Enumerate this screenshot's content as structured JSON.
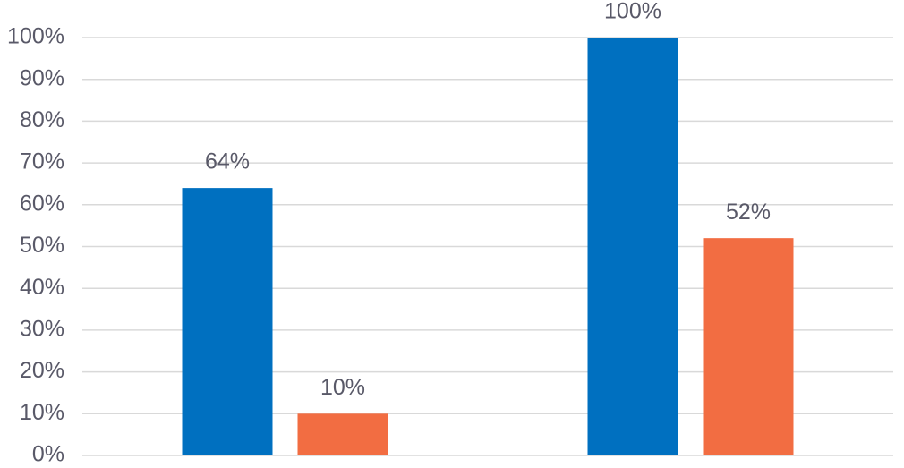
{
  "chart_data": {
    "type": "bar",
    "categories": [
      null,
      null
    ],
    "series": [
      {
        "color": "#0070c0",
        "values": [
          64,
          100
        ],
        "value_labels": [
          "64%",
          "100%"
        ]
      },
      {
        "color": "#f26d42",
        "values": [
          10,
          52
        ],
        "value_labels": [
          "10%",
          "52%"
        ]
      }
    ],
    "ylim": [
      0,
      100
    ],
    "yticks": [
      {
        "value": 0,
        "label": "0%"
      },
      {
        "value": 10,
        "label": "10%"
      },
      {
        "value": 20,
        "label": "20%"
      },
      {
        "value": 30,
        "label": "30%"
      },
      {
        "value": 40,
        "label": "40%"
      },
      {
        "value": 50,
        "label": "50%"
      },
      {
        "value": 60,
        "label": "60%"
      },
      {
        "value": 70,
        "label": "70%"
      },
      {
        "value": 80,
        "label": "80%"
      },
      {
        "value": 90,
        "label": "90%"
      },
      {
        "value": 100,
        "label": "100%"
      }
    ],
    "grid": true
  }
}
